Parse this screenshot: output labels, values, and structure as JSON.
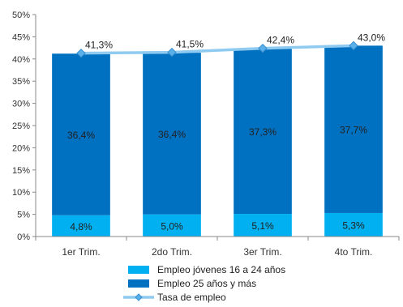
{
  "chart_data": {
    "type": "bar",
    "stacked": true,
    "categories": [
      "1er Trim.",
      "2do Trim.",
      "3er Trim.",
      "4to Trim."
    ],
    "series": [
      {
        "name": "Empleo jóvenes 16 a 24 años",
        "type": "bar",
        "color": "#00b0f0",
        "values": [
          4.8,
          5.0,
          5.1,
          5.3
        ],
        "labels": [
          "4,8%",
          "5,0%",
          "5,1%",
          "5,3%"
        ]
      },
      {
        "name": "Empleo 25 años y más",
        "type": "bar",
        "color": "#0070c0",
        "values": [
          36.4,
          36.4,
          37.3,
          37.7
        ],
        "labels": [
          "36,4%",
          "36,4%",
          "37,3%",
          "37,7%"
        ]
      },
      {
        "name": "Tasa de empleo",
        "type": "line",
        "color": "#8fcaf0",
        "marker_color": "#5ab0e8",
        "values": [
          41.3,
          41.5,
          42.4,
          43.0
        ],
        "labels": [
          "41,3%",
          "41,5%",
          "42,4%",
          "43,0%"
        ]
      }
    ],
    "ylim": [
      0,
      50
    ],
    "yticks": [
      0,
      5,
      10,
      15,
      20,
      25,
      30,
      35,
      40,
      45,
      50
    ],
    "ytick_labels": [
      "0%",
      "5%",
      "10%",
      "15%",
      "20%",
      "25%",
      "30%",
      "35%",
      "40%",
      "45%",
      "50%"
    ],
    "grid": false,
    "legend_position": "bottom"
  }
}
